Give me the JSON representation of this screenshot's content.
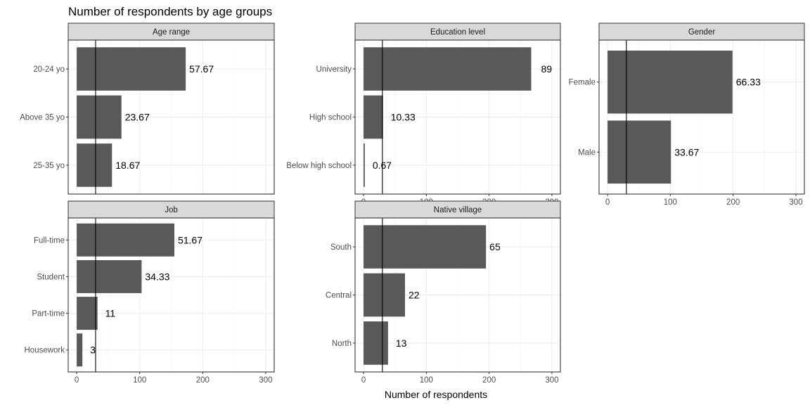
{
  "chart_data": {
    "type": "bar",
    "title": "Number of respondents by age groups",
    "xlabel": "Number of respondents",
    "xlim": [
      0,
      300
    ],
    "x_ticks": [
      "0",
      "100",
      "200",
      "300"
    ],
    "reference_line_x": 30,
    "grid": true,
    "panels": [
      {
        "name": "Age range",
        "categories": [
          "20-24 yo",
          "Above 35 yo",
          "25-35 yo"
        ],
        "values": [
          173,
          71,
          56
        ],
        "labels": [
          "57.67",
          "23.67",
          "18.67"
        ]
      },
      {
        "name": "Education level",
        "categories": [
          "University",
          "High school",
          "Below high school"
        ],
        "values": [
          267,
          31,
          2
        ],
        "labels": [
          "89",
          "10.33",
          "0.67"
        ]
      },
      {
        "name": "Gender",
        "categories": [
          "Female",
          "Male"
        ],
        "values": [
          199,
          101
        ],
        "labels": [
          "66.33",
          "33.67"
        ]
      },
      {
        "name": "Job",
        "categories": [
          "Full-time",
          "Student",
          "Part-time",
          "Housework"
        ],
        "values": [
          155,
          103,
          33,
          9
        ],
        "labels": [
          "51.67",
          "34.33",
          "11",
          "3"
        ]
      },
      {
        "name": "Native village",
        "categories": [
          "South",
          "Central",
          "North"
        ],
        "values": [
          195,
          66,
          39
        ],
        "labels": [
          "65",
          "22",
          "13"
        ]
      }
    ]
  },
  "colors": {
    "bar": "#595959",
    "strip": "#d9d9d9",
    "grid": "#ebebeb"
  }
}
